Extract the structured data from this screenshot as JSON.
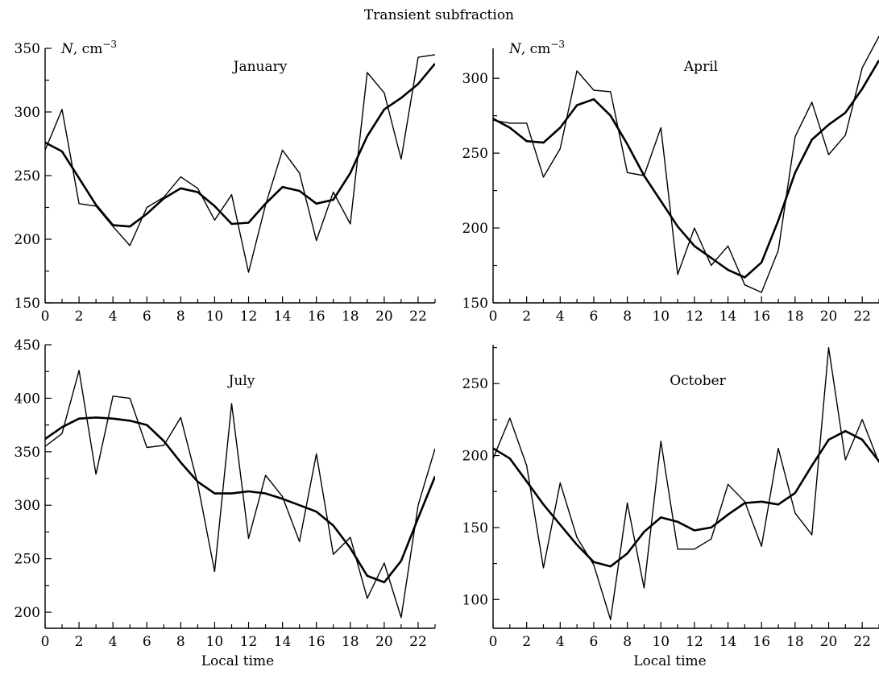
{
  "figure": {
    "title": "Transient subfraction"
  },
  "chart_data": [
    {
      "type": "line",
      "title": "January",
      "ylabel": "N, cm",
      "ylabel_sup": "−3",
      "xlabel": "",
      "xlim": [
        0,
        23
      ],
      "ylim": [
        150,
        350
      ],
      "x_ticks": [
        0,
        2,
        4,
        6,
        8,
        10,
        12,
        14,
        16,
        18,
        20,
        22
      ],
      "y_ticks": [
        150,
        200,
        250,
        300,
        350
      ],
      "x": [
        0,
        1,
        2,
        3,
        4,
        5,
        6,
        7,
        8,
        9,
        10,
        11,
        12,
        13,
        14,
        15,
        16,
        17,
        18,
        19,
        20,
        21,
        22,
        23
      ],
      "series": [
        {
          "style": "thin",
          "values": [
            270,
            302,
            228,
            226,
            210,
            195,
            225,
            233,
            249,
            240,
            215,
            235,
            174,
            227,
            270,
            252,
            199,
            237,
            212,
            331,
            315,
            263,
            343,
            345
          ]
        },
        {
          "style": "thick",
          "values": [
            276,
            269,
            248,
            227,
            211,
            210,
            220,
            232,
            240,
            237,
            226,
            212,
            213,
            228,
            241,
            238,
            228,
            231,
            252,
            281,
            302,
            311,
            322,
            338
          ]
        }
      ]
    },
    {
      "type": "line",
      "title": "April",
      "ylabel": "N, cm",
      "ylabel_sup": "−3",
      "xlabel": "",
      "xlim": [
        0,
        23
      ],
      "ylim": [
        150,
        320
      ],
      "x_ticks": [
        0,
        2,
        4,
        6,
        8,
        10,
        12,
        14,
        16,
        18,
        20,
        22
      ],
      "y_ticks": [
        150,
        200,
        250,
        300
      ],
      "x": [
        0,
        1,
        2,
        3,
        4,
        5,
        6,
        7,
        8,
        9,
        10,
        11,
        12,
        13,
        14,
        15,
        16,
        17,
        18,
        19,
        20,
        21,
        22,
        23
      ],
      "series": [
        {
          "style": "thin",
          "values": [
            272,
            270,
            270,
            234,
            253,
            305,
            292,
            291,
            237,
            235,
            267,
            169,
            200,
            175,
            188,
            162,
            157,
            185,
            261,
            284,
            249,
            262,
            307,
            328
          ]
        },
        {
          "style": "thick",
          "values": [
            273,
            267,
            258,
            257,
            267,
            282,
            286,
            275,
            256,
            235,
            218,
            201,
            188,
            180,
            172,
            167,
            177,
            205,
            237,
            259,
            269,
            277,
            293,
            312
          ]
        }
      ]
    },
    {
      "type": "line",
      "title": "July",
      "ylabel": "",
      "xlabel": "Local time",
      "xlim": [
        0,
        23
      ],
      "ylim": [
        185,
        450
      ],
      "x_ticks": [
        0,
        2,
        4,
        6,
        8,
        10,
        12,
        14,
        16,
        18,
        20,
        22
      ],
      "y_ticks": [
        200,
        250,
        300,
        350,
        400,
        450
      ],
      "x": [
        0,
        1,
        2,
        3,
        4,
        5,
        6,
        7,
        8,
        9,
        10,
        11,
        12,
        13,
        14,
        15,
        16,
        17,
        18,
        19,
        20,
        21,
        22,
        23
      ],
      "series": [
        {
          "style": "thin",
          "values": [
            355,
            367,
            426,
            329,
            402,
            400,
            354,
            356,
            382,
            320,
            238,
            395,
            269,
            328,
            308,
            266,
            348,
            254,
            270,
            213,
            246,
            195,
            300,
            353
          ]
        },
        {
          "style": "thick",
          "values": [
            362,
            373,
            381,
            382,
            381,
            379,
            375,
            360,
            340,
            322,
            311,
            311,
            313,
            311,
            306,
            300,
            294,
            281,
            260,
            234,
            228,
            248,
            288,
            327
          ]
        }
      ]
    },
    {
      "type": "line",
      "title": "October",
      "ylabel": "",
      "xlabel": "Local time",
      "xlim": [
        0,
        23
      ],
      "ylim": [
        80,
        277
      ],
      "x_ticks": [
        0,
        2,
        4,
        6,
        8,
        10,
        12,
        14,
        16,
        18,
        20,
        22
      ],
      "y_ticks": [
        100,
        150,
        200,
        250
      ],
      "x": [
        0,
        1,
        2,
        3,
        4,
        5,
        6,
        7,
        8,
        9,
        10,
        11,
        12,
        13,
        14,
        15,
        16,
        17,
        18,
        19,
        20,
        21,
        22,
        23
      ],
      "series": [
        {
          "style": "thin",
          "values": [
            198,
            226,
            193,
            122,
            181,
            143,
            124,
            86,
            167,
            108,
            210,
            135,
            135,
            142,
            180,
            168,
            137,
            205,
            160,
            145,
            275,
            197,
            225,
            195
          ]
        },
        {
          "style": "thick",
          "values": [
            205,
            198,
            182,
            166,
            152,
            138,
            126,
            123,
            132,
            147,
            157,
            154,
            148,
            150,
            159,
            167,
            168,
            166,
            174,
            193,
            211,
            217,
            211,
            196
          ]
        }
      ]
    }
  ]
}
